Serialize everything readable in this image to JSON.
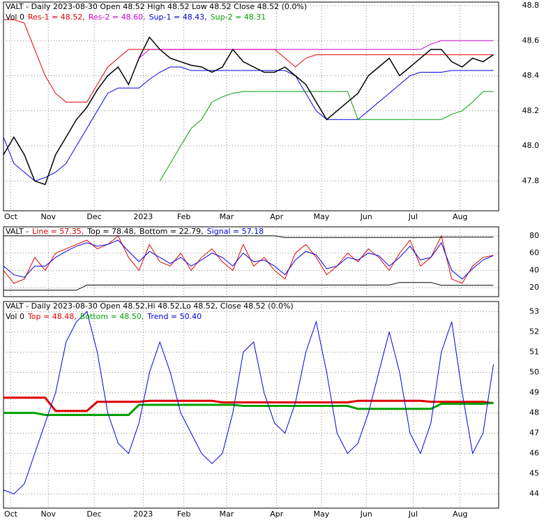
{
  "chart_data": [
    {
      "type": "line",
      "title": "VALT - Daily 2023-08-30 Open 48.52  High 48.52  Low 48.52  Close 48.52 (0.0%)",
      "volume_label": "Vol 0",
      "x": [
        0,
        1,
        2,
        3,
        4,
        5,
        6,
        7,
        8,
        9,
        10,
        11,
        12,
        13,
        14,
        15,
        16,
        17,
        18,
        19,
        20,
        21,
        22,
        23,
        24,
        25,
        26,
        27,
        28,
        29,
        30,
        31,
        32,
        33,
        34,
        35,
        36,
        37,
        38,
        39,
        40,
        41,
        42,
        43,
        44,
        45,
        46,
        47
      ],
      "values": [
        47.95,
        48.05,
        47.95,
        47.8,
        47.78,
        47.95,
        48.05,
        48.15,
        48.22,
        48.32,
        48.4,
        48.45,
        48.35,
        48.5,
        48.62,
        48.55,
        48.5,
        48.48,
        48.46,
        48.45,
        48.42,
        48.45,
        48.55,
        48.48,
        48.45,
        48.42,
        48.42,
        48.45,
        48.4,
        48.35,
        48.25,
        48.15,
        48.2,
        48.25,
        48.3,
        48.4,
        48.45,
        48.5,
        48.4,
        48.45,
        48.5,
        48.55,
        48.55,
        48.48,
        48.45,
        48.5,
        48.48,
        48.52
      ],
      "color": "#000000",
      "series": [
        {
          "name": "Res-1 = 48.52,",
          "color": "#e00000",
          "values": [
            48.72,
            48.72,
            48.7,
            48.55,
            48.4,
            48.3,
            48.25,
            48.25,
            48.25,
            48.35,
            48.45,
            48.5,
            48.55,
            48.55,
            48.55,
            48.55,
            48.55,
            48.55,
            48.55,
            48.55,
            48.55,
            48.55,
            48.55,
            48.55,
            48.55,
            48.55,
            48.55,
            48.5,
            48.45,
            48.5,
            48.52,
            48.52,
            48.52,
            48.52,
            48.52,
            48.52,
            48.52,
            48.52,
            48.52,
            48.52,
            48.52,
            48.52,
            48.52,
            48.52,
            48.52,
            48.52,
            48.52,
            48.52
          ]
        },
        {
          "name": "Res-2 = 48.60,",
          "color": "#d000d0",
          "values": [
            null,
            null,
            null,
            null,
            null,
            null,
            null,
            null,
            null,
            null,
            null,
            null,
            null,
            48.5,
            48.55,
            48.55,
            48.55,
            48.55,
            48.55,
            48.55,
            48.55,
            48.55,
            48.55,
            48.55,
            48.55,
            48.55,
            48.55,
            48.55,
            48.55,
            48.55,
            48.55,
            48.55,
            48.55,
            48.55,
            48.55,
            48.55,
            48.55,
            48.55,
            48.55,
            48.55,
            48.55,
            48.58,
            48.6,
            48.6,
            48.6,
            48.6,
            48.6,
            48.6
          ]
        },
        {
          "name": "Sup-1 = 48.43,",
          "color": "#0000e0",
          "values": [
            48.05,
            47.9,
            47.85,
            47.8,
            47.82,
            47.85,
            47.9,
            48.0,
            48.1,
            48.2,
            48.3,
            48.33,
            48.33,
            48.33,
            48.38,
            48.42,
            48.45,
            48.45,
            48.43,
            48.43,
            48.43,
            48.43,
            48.43,
            48.43,
            48.43,
            48.43,
            48.43,
            48.43,
            48.4,
            48.3,
            48.2,
            48.15,
            48.15,
            48.15,
            48.15,
            48.2,
            48.25,
            48.3,
            48.35,
            48.4,
            48.42,
            48.42,
            48.42,
            48.43,
            48.43,
            48.43,
            48.43,
            48.43
          ]
        },
        {
          "name": "Sup-2 = 48.31",
          "color": "#00a000",
          "values": [
            null,
            null,
            null,
            null,
            null,
            null,
            null,
            null,
            null,
            null,
            null,
            null,
            null,
            null,
            null,
            47.8,
            47.9,
            48.0,
            48.1,
            48.15,
            48.25,
            48.28,
            48.3,
            48.31,
            48.31,
            48.31,
            48.31,
            48.31,
            48.31,
            48.31,
            48.31,
            48.31,
            48.31,
            48.31,
            48.15,
            48.15,
            48.15,
            48.15,
            48.15,
            48.15,
            48.15,
            48.15,
            48.15,
            48.18,
            48.2,
            48.25,
            48.31,
            48.31
          ]
        }
      ],
      "xlim": [
        0,
        47.5
      ],
      "xticks": [
        {
          "value": 0.7,
          "label": "Oct"
        },
        {
          "value": 4.3,
          "label": "Nov"
        },
        {
          "value": 8.7,
          "label": "Dec"
        },
        {
          "value": 13.4,
          "label": "2023"
        },
        {
          "value": 17.3,
          "label": "Feb"
        },
        {
          "value": 21.4,
          "label": "Mar"
        },
        {
          "value": 26.2,
          "label": "Apr"
        },
        {
          "value": 30.5,
          "label": "May"
        },
        {
          "value": 34.8,
          "label": "Jun"
        },
        {
          "value": 39.3,
          "label": "Jul"
        },
        {
          "value": 43.8,
          "label": "Aug"
        }
      ],
      "ylim": [
        47.63,
        48.82
      ],
      "yticks": [
        47.8,
        {
          "value": 48,
          "label": "48.0"
        },
        48.2,
        48.4,
        48.6,
        48.8
      ],
      "grid": true
    },
    {
      "type": "line",
      "title": "VALT -",
      "x": [
        0,
        1,
        2,
        3,
        4,
        5,
        6,
        7,
        8,
        9,
        10,
        11,
        12,
        13,
        14,
        15,
        16,
        17,
        18,
        19,
        20,
        21,
        22,
        23,
        24,
        25,
        26,
        27,
        28,
        29,
        30,
        31,
        32,
        33,
        34,
        35,
        36,
        37,
        38,
        39,
        40,
        41,
        42,
        43,
        44,
        45,
        46,
        47
      ],
      "series": [
        {
          "name": "Line = 57.35,",
          "color": "#e00000",
          "values": [
            40,
            25,
            30,
            55,
            40,
            60,
            65,
            70,
            75,
            65,
            70,
            80,
            55,
            40,
            70,
            50,
            45,
            60,
            40,
            55,
            65,
            50,
            40,
            70,
            45,
            55,
            40,
            30,
            60,
            70,
            55,
            35,
            45,
            60,
            50,
            65,
            55,
            40,
            60,
            75,
            45,
            55,
            80,
            30,
            25,
            45,
            55,
            57.35
          ]
        },
        {
          "name": "Top = 78.48,",
          "color": "#000000",
          "values": [
            80,
            80,
            80,
            80,
            80,
            80,
            80,
            80,
            80,
            80,
            80,
            80,
            80,
            80,
            80,
            80,
            80,
            80,
            80,
            80,
            80,
            80,
            80,
            80,
            80,
            80,
            80,
            78,
            78,
            78,
            78,
            78,
            78,
            78,
            78,
            78,
            78,
            78,
            78,
            78,
            78,
            78,
            78.48,
            78.48,
            78.48,
            78.48,
            78.48,
            78.48
          ]
        },
        {
          "name": "Bottom = 22.79,",
          "color": "#000000",
          "values": [
            17,
            17,
            17,
            17,
            17,
            17,
            17,
            17,
            23,
            23,
            23,
            23,
            23,
            23,
            23,
            23,
            23,
            23,
            23,
            23,
            23,
            23,
            23,
            23,
            23,
            23,
            23,
            23,
            23,
            23,
            23,
            23,
            23,
            23,
            23,
            23,
            23,
            23,
            26,
            26,
            26,
            26,
            22.79,
            22.79,
            22.79,
            22.79,
            22.79,
            22.79
          ]
        },
        {
          "name": "Signal = 57.18",
          "color": "#0000e0",
          "values": [
            45,
            35,
            32,
            45,
            45,
            55,
            62,
            68,
            72,
            68,
            70,
            75,
            62,
            50,
            62,
            55,
            48,
            55,
            45,
            52,
            60,
            55,
            45,
            60,
            50,
            52,
            45,
            35,
            52,
            62,
            58,
            42,
            45,
            55,
            52,
            60,
            57,
            45,
            55,
            68,
            52,
            55,
            72,
            40,
            30,
            42,
            52,
            57.18
          ]
        }
      ],
      "xlim": [
        0,
        47.5
      ],
      "ylim": [
        9.6,
        90.4
      ],
      "yticks": [
        20,
        40,
        60,
        80
      ],
      "grid": true
    },
    {
      "type": "line",
      "title": "VALT - Daily 2023-08-30 Open 48.52,Hi 48.52,Lo 48.52, Close 48.52 (0.0%)",
      "volume_label": "Vol 0",
      "x": [
        0,
        1,
        2,
        3,
        4,
        5,
        6,
        7,
        8,
        9,
        10,
        11,
        12,
        13,
        14,
        15,
        16,
        17,
        18,
        19,
        20,
        21,
        22,
        23,
        24,
        25,
        26,
        27,
        28,
        29,
        30,
        31,
        32,
        33,
        34,
        35,
        36,
        37,
        38,
        39,
        40,
        41,
        42,
        43,
        44,
        45,
        46,
        47
      ],
      "series": [
        {
          "name": "Top = 48.48,",
          "color": "#e00000",
          "width": 3,
          "values": [
            48.75,
            48.75,
            48.75,
            48.75,
            48.75,
            48.1,
            48.1,
            48.1,
            48.1,
            48.55,
            48.55,
            48.55,
            48.55,
            48.55,
            48.6,
            48.6,
            48.6,
            48.6,
            48.6,
            48.6,
            48.6,
            48.52,
            48.52,
            48.52,
            48.52,
            48.52,
            48.52,
            48.52,
            48.52,
            48.52,
            48.52,
            48.52,
            48.52,
            48.52,
            48.6,
            48.6,
            48.6,
            48.6,
            48.6,
            48.6,
            48.6,
            48.55,
            48.55,
            48.55,
            48.55,
            48.55,
            48.55,
            48.48
          ]
        },
        {
          "name": "Bottom = 48.50,",
          "color": "#00a000",
          "width": 3,
          "values": [
            48.0,
            48.0,
            48.0,
            48.0,
            47.9,
            47.9,
            47.9,
            47.9,
            47.9,
            47.9,
            47.9,
            47.9,
            47.9,
            48.4,
            48.4,
            48.4,
            48.4,
            48.4,
            48.4,
            48.4,
            48.4,
            48.4,
            48.4,
            48.35,
            48.35,
            48.35,
            48.35,
            48.35,
            48.35,
            48.35,
            48.35,
            48.35,
            48.35,
            48.35,
            48.2,
            48.2,
            48.2,
            48.2,
            48.2,
            48.2,
            48.2,
            48.2,
            48.45,
            48.45,
            48.45,
            48.45,
            48.45,
            48.5
          ]
        },
        {
          "name": "Trend = 50.40",
          "color": "#0000e0",
          "width": 1,
          "values": [
            44.2,
            44.0,
            44.5,
            46,
            47.5,
            49,
            51.5,
            52.5,
            53,
            51,
            48,
            46.5,
            46,
            47.5,
            50,
            51.5,
            50,
            48,
            47,
            46,
            45.5,
            46,
            48,
            51,
            51.5,
            49,
            47.5,
            47,
            48.5,
            51,
            52.5,
            50,
            47,
            46,
            46.5,
            48,
            50,
            52,
            50,
            47,
            46,
            47.5,
            51,
            52.5,
            49,
            46,
            47,
            50.4
          ]
        }
      ],
      "xlim": [
        0,
        47.5
      ],
      "xticks": [
        {
          "value": 0.7,
          "label": "Oct"
        },
        {
          "value": 4.3,
          "label": "Nov"
        },
        {
          "value": 8.7,
          "label": "Dec"
        },
        {
          "value": 13.4,
          "label": "2023"
        },
        {
          "value": 17.3,
          "label": "Feb"
        },
        {
          "value": 21.4,
          "label": "Mar"
        },
        {
          "value": 26.2,
          "label": "Apr"
        },
        {
          "value": 30.5,
          "label": "May"
        },
        {
          "value": 34.8,
          "label": "Jun"
        },
        {
          "value": 39.3,
          "label": "Jul"
        },
        {
          "value": 43.8,
          "label": "Aug"
        }
      ],
      "ylim": [
        43.3,
        53.5
      ],
      "yticks": [
        44,
        45,
        46,
        47,
        48,
        49,
        50,
        51,
        52,
        53
      ],
      "grid": true
    }
  ]
}
